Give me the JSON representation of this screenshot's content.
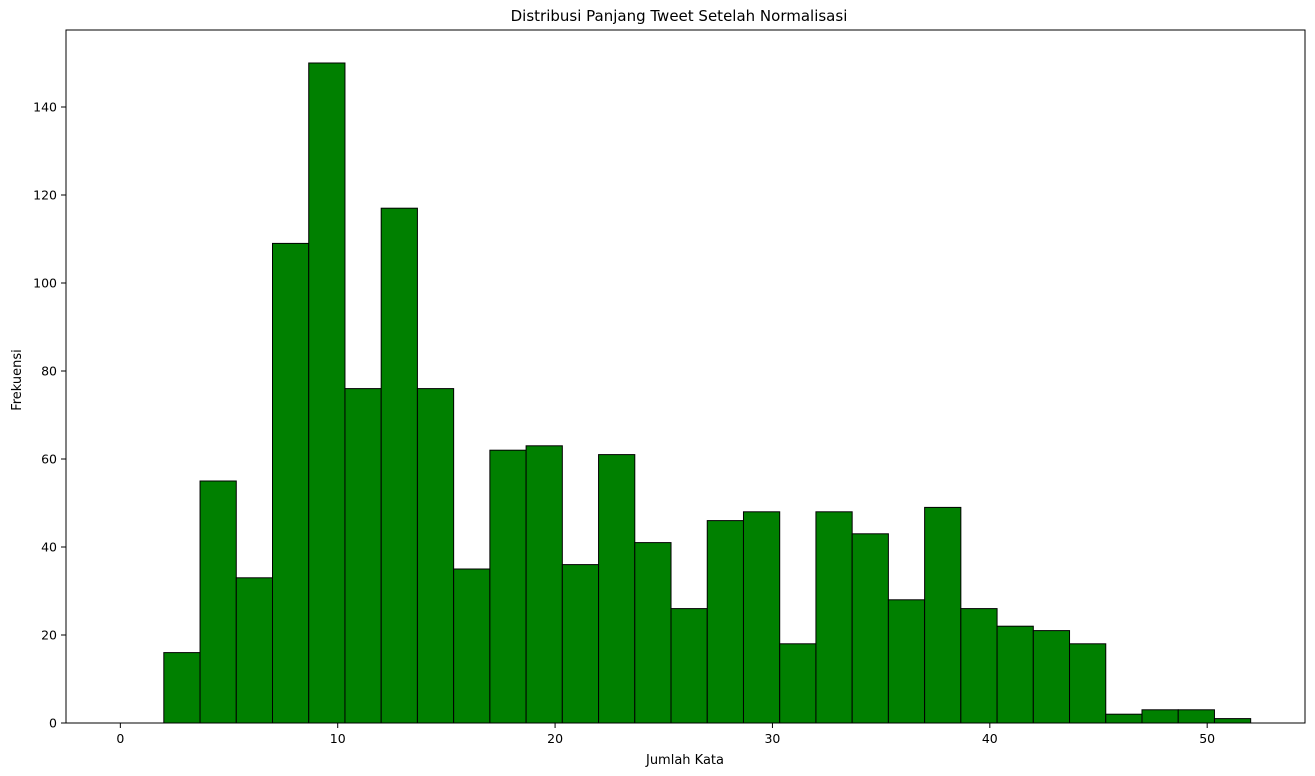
{
  "chart_data": {
    "type": "bar",
    "title": "Distribusi Panjang Tweet Setelah Normalisasi",
    "xlabel": "Jumlah Kata",
    "ylabel": "Frekuensi",
    "bar_color": "#008000",
    "edge_color": "#000000",
    "xlim": [
      -2.5,
      54.5
    ],
    "ylim": [
      0,
      157.5
    ],
    "xticks": [
      0,
      10,
      20,
      30,
      40,
      50
    ],
    "yticks": [
      0,
      20,
      40,
      60,
      80,
      100,
      120,
      140
    ],
    "bin_start": 2,
    "bin_width": 1.6667,
    "values": [
      16,
      55,
      33,
      109,
      150,
      76,
      117,
      76,
      35,
      62,
      63,
      36,
      61,
      41,
      26,
      46,
      48,
      18,
      48,
      43,
      28,
      49,
      26,
      22,
      21,
      18,
      2,
      3,
      3,
      1
    ],
    "grid": false,
    "legend": "none"
  }
}
